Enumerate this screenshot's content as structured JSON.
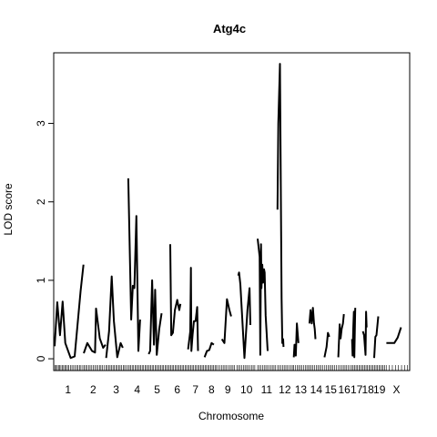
{
  "chart_data": {
    "type": "line",
    "title": "Atg4c",
    "xlabel": "Chromosome",
    "ylabel": "LOD score",
    "ylim": [
      -0.15,
      3.9
    ],
    "yticks": [
      0,
      1,
      2,
      3
    ],
    "grid": false,
    "legend": "none",
    "line_color": "#000000",
    "xlim": [
      0,
      21
    ],
    "chromosomes": [
      {
        "name": "1",
        "start": 0.0,
        "end": 1.31,
        "points": [
          [
            0.0,
            0.16
          ],
          [
            0.1,
            0.72
          ],
          [
            0.2,
            0.3
          ],
          [
            0.3,
            0.73
          ],
          [
            0.4,
            0.2
          ],
          [
            0.6,
            0.01
          ],
          [
            0.75,
            0.03
          ],
          [
            0.97,
            0.86
          ],
          [
            1.08,
            1.2
          ]
        ]
      },
      {
        "name": "2",
        "start": 1.31,
        "end": 2.47,
        "points": [
          [
            0.1,
            0.07
          ],
          [
            0.25,
            0.2
          ],
          [
            0.45,
            0.1
          ],
          [
            0.58,
            0.08
          ],
          [
            0.62,
            0.64
          ],
          [
            0.78,
            0.26
          ],
          [
            0.92,
            0.14
          ],
          [
            1.02,
            0.18
          ]
        ]
      },
      {
        "name": "3",
        "start": 2.47,
        "end": 3.56,
        "points": [
          [
            0.05,
            0.01
          ],
          [
            0.18,
            0.35
          ],
          [
            0.3,
            1.05
          ],
          [
            0.4,
            0.48
          ],
          [
            0.55,
            0.02
          ],
          [
            0.7,
            0.2
          ],
          [
            0.8,
            0.14
          ]
        ]
      },
      {
        "name": "4",
        "start": 3.56,
        "end": 4.53,
        "points": [
          [
            0.05,
            2.3
          ],
          [
            0.2,
            0.5
          ],
          [
            0.28,
            0.93
          ],
          [
            0.36,
            0.9
          ],
          [
            0.46,
            1.82
          ],
          [
            0.56,
            0.1
          ],
          [
            0.65,
            0.5
          ]
        ]
      },
      {
        "name": "5",
        "start": 4.53,
        "end": 5.52,
        "points": [
          [
            0.08,
            0.06
          ],
          [
            0.15,
            0.1
          ],
          [
            0.25,
            1.0
          ],
          [
            0.34,
            0.18
          ],
          [
            0.4,
            0.88
          ],
          [
            0.48,
            0.05
          ],
          [
            0.6,
            0.38
          ],
          [
            0.72,
            0.58
          ]
        ]
      },
      {
        "name": "6",
        "start": 5.52,
        "end": 6.5,
        "points": [
          [
            0.15,
            1.46
          ],
          [
            0.2,
            0.3
          ],
          [
            0.28,
            0.33
          ],
          [
            0.38,
            0.62
          ],
          [
            0.5,
            0.75
          ],
          [
            0.55,
            0.68
          ],
          [
            0.6,
            0.62
          ],
          [
            0.66,
            0.7
          ]
        ]
      },
      {
        "name": "7",
        "start": 6.5,
        "end": 7.31,
        "points": [
          [
            0.05,
            0.12
          ],
          [
            0.18,
            0.35
          ],
          [
            0.22,
            1.16
          ],
          [
            0.25,
            0.1
          ],
          [
            0.32,
            0.3
          ],
          [
            0.4,
            0.48
          ],
          [
            0.5,
            0.48
          ],
          [
            0.6,
            0.66
          ],
          [
            0.65,
            0.1
          ]
        ]
      },
      {
        "name": "8",
        "start": 7.31,
        "end": 8.07,
        "points": [
          [
            0.05,
            0.02
          ],
          [
            0.2,
            0.1
          ],
          [
            0.35,
            0.11
          ],
          [
            0.5,
            0.2
          ],
          [
            0.65,
            0.18
          ]
        ]
      },
      {
        "name": "9",
        "start": 8.07,
        "end": 8.9,
        "points": [
          [
            0.15,
            0.25
          ],
          [
            0.3,
            0.2
          ],
          [
            0.45,
            0.76
          ],
          [
            0.6,
            0.62
          ],
          [
            0.7,
            0.54
          ]
        ]
      },
      {
        "name": "10",
        "start": 8.9,
        "end": 9.9,
        "points": [
          [
            0.1,
            1.06
          ],
          [
            0.14,
            1.1
          ],
          [
            0.2,
            0.95
          ],
          [
            0.4,
            0.01
          ],
          [
            0.55,
            0.62
          ],
          [
            0.65,
            0.9
          ],
          [
            0.69,
            0.43
          ]
        ]
      },
      {
        "name": "11",
        "start": 9.9,
        "end": 10.88,
        "points": [
          [
            0.05,
            1.53
          ],
          [
            0.15,
            1.3
          ],
          [
            0.18,
            0.05
          ],
          [
            0.22,
            1.46
          ],
          [
            0.24,
            0.9
          ],
          [
            0.28,
            1.2
          ],
          [
            0.32,
            0.97
          ],
          [
            0.37,
            1.14
          ],
          [
            0.4,
            1.1
          ],
          [
            0.45,
            0.55
          ],
          [
            0.55,
            0.1
          ]
        ]
      },
      {
        "name": "12",
        "start": 10.88,
        "end": 11.68,
        "points": [
          [
            0.05,
            1.9
          ],
          [
            0.1,
            3.0
          ],
          [
            0.2,
            3.76
          ],
          [
            0.3,
            0.77
          ],
          [
            0.35,
            0.2
          ],
          [
            0.4,
            0.25
          ],
          [
            0.42,
            0.15
          ]
        ]
      },
      {
        "name": "13",
        "start": 11.68,
        "end": 12.45,
        "points": [
          [
            0.05,
            0.02
          ],
          [
            0.1,
            0.18
          ],
          [
            0.18,
            0.04
          ],
          [
            0.25,
            0.45
          ],
          [
            0.35,
            0.2
          ]
        ]
      },
      {
        "name": "14",
        "start": 12.45,
        "end": 13.19,
        "points": [
          [
            0.05,
            0.45
          ],
          [
            0.12,
            0.62
          ],
          [
            0.2,
            0.45
          ],
          [
            0.28,
            0.65
          ],
          [
            0.35,
            0.45
          ],
          [
            0.4,
            0.38
          ],
          [
            0.45,
            0.25
          ]
        ]
      },
      {
        "name": "15",
        "start": 13.19,
        "end": 13.87,
        "points": [
          [
            0.05,
            0.02
          ],
          [
            0.2,
            0.15
          ],
          [
            0.3,
            0.33
          ],
          [
            0.4,
            0.28
          ]
        ]
      },
      {
        "name": "16",
        "start": 13.87,
        "end": 14.52,
        "points": [
          [
            0.05,
            0.02
          ],
          [
            0.15,
            0.44
          ],
          [
            0.22,
            0.26
          ],
          [
            0.3,
            0.38
          ],
          [
            0.4,
            0.45
          ],
          [
            0.47,
            0.57
          ]
        ]
      },
      {
        "name": "17",
        "start": 14.52,
        "end": 15.08,
        "points": [
          [
            0.1,
            0.25
          ],
          [
            0.15,
            0.04
          ],
          [
            0.2,
            0.38
          ],
          [
            0.26,
            0.6
          ],
          [
            0.3,
            0.02
          ],
          [
            0.38,
            0.65
          ]
        ]
      },
      {
        "name": "18",
        "start": 15.08,
        "end": 15.63,
        "points": [
          [
            0.05,
            0.35
          ],
          [
            0.15,
            0.3
          ],
          [
            0.28,
            0.05
          ],
          [
            0.33,
            0.6
          ],
          [
            0.38,
            0.4
          ]
        ]
      },
      {
        "name": "19",
        "start": 15.63,
        "end": 16.2,
        "points": [
          [
            0.05,
            0.01
          ],
          [
            0.15,
            0.28
          ],
          [
            0.25,
            0.3
          ],
          [
            0.4,
            0.54
          ]
        ]
      },
      {
        "name": "X",
        "start": 16.2,
        "end": 17.31,
        "points": [
          [
            0.05,
            0.2
          ],
          [
            0.4,
            0.2
          ],
          [
            0.55,
            0.27
          ],
          [
            0.7,
            0.4
          ]
        ]
      }
    ],
    "marker_positions": [
      0.02,
      0.08,
      0.13,
      0.19,
      0.25,
      0.31,
      0.37,
      0.44,
      0.5,
      0.56,
      0.63,
      0.7,
      0.78,
      0.85,
      0.93,
      1.01,
      1.08,
      1.15,
      1.22,
      1.29,
      1.38,
      1.45,
      1.52,
      1.59,
      1.67,
      1.74,
      1.82,
      1.9,
      1.97,
      2.05,
      2.12,
      2.2,
      2.27,
      2.35,
      2.42,
      2.51,
      2.58,
      2.65,
      2.72,
      2.79,
      2.86,
      2.93,
      3.0,
      3.07,
      3.14,
      3.21,
      3.28,
      3.36,
      3.43,
      3.5,
      3.59,
      3.66,
      3.73,
      3.8,
      3.87,
      3.94,
      4.01,
      4.08,
      4.15,
      4.22,
      4.29,
      4.36,
      4.43,
      4.5,
      4.57,
      4.64,
      4.71,
      4.78,
      4.85,
      4.92,
      4.99,
      5.06,
      5.13,
      5.2,
      5.27,
      5.34,
      5.41,
      5.48,
      5.55,
      5.62,
      5.69,
      5.76,
      5.83,
      5.9,
      5.97,
      6.04,
      6.11,
      6.18,
      6.25,
      6.32,
      6.39,
      6.46,
      6.53,
      6.6,
      6.67,
      6.74,
      6.81,
      6.88,
      6.95,
      7.02,
      7.09,
      7.16,
      7.23,
      7.3,
      7.37,
      7.44,
      7.51,
      7.58,
      7.65,
      7.72,
      7.79,
      7.86,
      7.93,
      8.0,
      8.1,
      8.18,
      8.26,
      8.34,
      8.42,
      8.5,
      8.58,
      8.66,
      8.74,
      8.82,
      8.93,
      9.01,
      9.09,
      9.17,
      9.25,
      9.33,
      9.41,
      9.49,
      9.57,
      9.65,
      9.73,
      9.81,
      9.95,
      10.03,
      10.11,
      10.19,
      10.27,
      10.35,
      10.43,
      10.51,
      10.59,
      10.67,
      10.75,
      10.83,
      10.93,
      11.01,
      11.09,
      11.17,
      11.25,
      11.33,
      11.41,
      11.49,
      11.57,
      11.65,
      11.72,
      11.8,
      11.88,
      11.96,
      12.04,
      12.12,
      12.2,
      12.28,
      12.36,
      12.44,
      12.5,
      12.58,
      12.66,
      12.74,
      12.82,
      12.9,
      12.98,
      13.06,
      13.14,
      13.24,
      13.32,
      13.4,
      13.48,
      13.56,
      13.64,
      13.72,
      13.8,
      13.91,
      13.99,
      14.07,
      14.15,
      14.23,
      14.31,
      14.39,
      14.47,
      14.56,
      14.63,
      14.7,
      14.77,
      14.84,
      14.91,
      14.98,
      15.05,
      15.12,
      15.19,
      15.26,
      15.33,
      15.4,
      15.47,
      15.54,
      15.61,
      15.68,
      15.75,
      15.82,
      15.89,
      15.96,
      16.03,
      16.1,
      16.17,
      16.25,
      16.4,
      16.55,
      16.7,
      16.85,
      17.0,
      17.15,
      17.28
    ]
  }
}
